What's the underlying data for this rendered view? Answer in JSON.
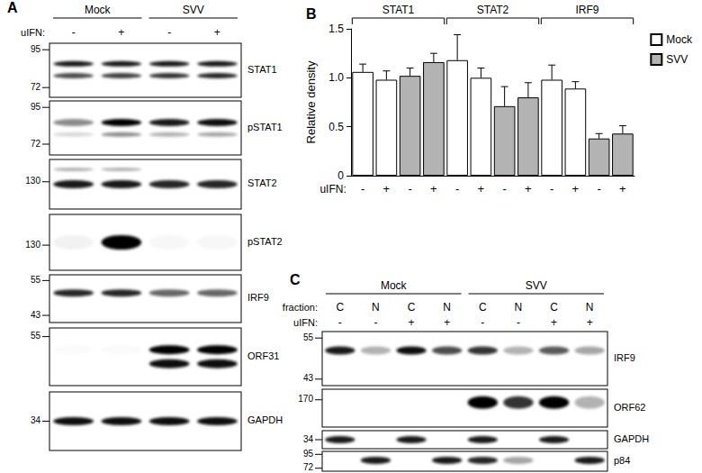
{
  "chart_data": {
    "type": "bar",
    "title": "B",
    "xlabel": "uIFN:",
    "ylabel": "Relative density",
    "categories": [
      "-",
      "+",
      "-",
      "+",
      "-",
      "+",
      "-",
      "+",
      "-",
      "+",
      "-",
      "+"
    ],
    "groups": [
      {
        "label": "STAT1",
        "span": 4
      },
      {
        "label": "STAT2",
        "span": 4
      },
      {
        "label": "IRF9",
        "span": 4
      }
    ],
    "series": [
      {
        "name": "Mock",
        "color": "#ffffff",
        "values": [
          1.06,
          0.98,
          null,
          null,
          1.18,
          1.0,
          null,
          null,
          0.98,
          0.89,
          null,
          null
        ],
        "errors": [
          0.08,
          0.09,
          null,
          null,
          0.26,
          0.1,
          null,
          null,
          0.15,
          0.07,
          null,
          null
        ]
      },
      {
        "name": "SVV",
        "color": "#b3b3b3",
        "values": [
          null,
          null,
          1.02,
          1.16,
          null,
          null,
          0.71,
          0.8,
          null,
          null,
          0.38,
          0.43
        ],
        "errors": [
          null,
          null,
          0.08,
          0.09,
          null,
          null,
          0.2,
          0.15,
          null,
          null,
          0.05,
          0.08
        ]
      }
    ],
    "ylim": [
      0,
      1.5
    ],
    "yticks": [
      0,
      0.5,
      {
        "value": 1,
        "label": "1.0"
      },
      1.5
    ],
    "grid": false,
    "legend": "upper right"
  },
  "panel_a": {
    "label": "A",
    "groups": [
      {
        "label": "Mock",
        "lanes": 2
      },
      {
        "label": "SVV",
        "lanes": 2
      }
    ],
    "lane_rows": [
      {
        "label": "uIFN:",
        "lanes": [
          "-",
          "+",
          "-",
          "+"
        ]
      }
    ],
    "blots": [
      {
        "name": "STAT1",
        "markers": [
          95,
          72
        ]
      },
      {
        "name": "pSTAT1",
        "markers": [
          95,
          72
        ]
      },
      {
        "name": "STAT2",
        "markers": [
          130
        ]
      },
      {
        "name": "pSTAT2",
        "markers": [
          130
        ]
      },
      {
        "name": "IRF9",
        "markers": [
          55,
          43
        ]
      },
      {
        "name": "ORF31",
        "markers": [
          55
        ]
      },
      {
        "name": "GAPDH",
        "markers": [
          34
        ]
      }
    ]
  },
  "panel_c": {
    "label": "C",
    "groups": [
      {
        "label": "Mock",
        "lanes": 4
      },
      {
        "label": "SVV",
        "lanes": 4
      }
    ],
    "lane_rows": [
      {
        "label": "fraction:",
        "lanes": [
          "C",
          "N",
          "C",
          "N",
          "C",
          "N",
          "C",
          "N"
        ]
      },
      {
        "label": "uIFN:",
        "lanes": [
          "-",
          "-",
          "+",
          "+",
          "-",
          "-",
          "+",
          "+"
        ]
      }
    ],
    "blots": [
      {
        "name": "IRF9",
        "markers": [
          55,
          43
        ]
      },
      {
        "name": "ORF62",
        "markers": [
          170
        ]
      },
      {
        "name": "GAPDH",
        "markers": [
          34
        ]
      },
      {
        "name": "p84",
        "markers": [
          95,
          72
        ]
      }
    ]
  }
}
